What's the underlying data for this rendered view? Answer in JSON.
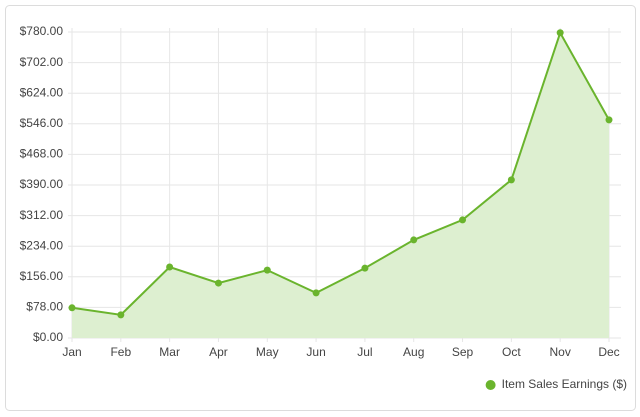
{
  "chart_data": {
    "type": "line",
    "categories": [
      "Jan",
      "Feb",
      "Mar",
      "Apr",
      "May",
      "Jun",
      "Jul",
      "Aug",
      "Sep",
      "Oct",
      "Nov",
      "Dec"
    ],
    "series": [
      {
        "name": "Item Sales Earnings ($)",
        "color": "#6ab42d",
        "fill": "#ddefd0",
        "values": [
          77,
          59,
          181,
          140,
          173,
          115,
          178,
          250,
          301,
          403,
          778,
          556
        ]
      }
    ],
    "ylim": [
      0,
      780
    ],
    "yticks": [
      {
        "value": 0,
        "label": "$0.00"
      },
      {
        "value": 78,
        "label": "$78.00"
      },
      {
        "value": 156,
        "label": "$156.00"
      },
      {
        "value": 234,
        "label": "$234.00"
      },
      {
        "value": 312,
        "label": "$312.00"
      },
      {
        "value": 390,
        "label": "$390.00"
      },
      {
        "value": 468,
        "label": "$468.00"
      },
      {
        "value": 546,
        "label": "$546.00"
      },
      {
        "value": 624,
        "label": "$624.00"
      },
      {
        "value": 702,
        "label": "$702.00"
      },
      {
        "value": 780,
        "label": "$780.00"
      }
    ],
    "grid": true,
    "legend": "bottom-right"
  }
}
